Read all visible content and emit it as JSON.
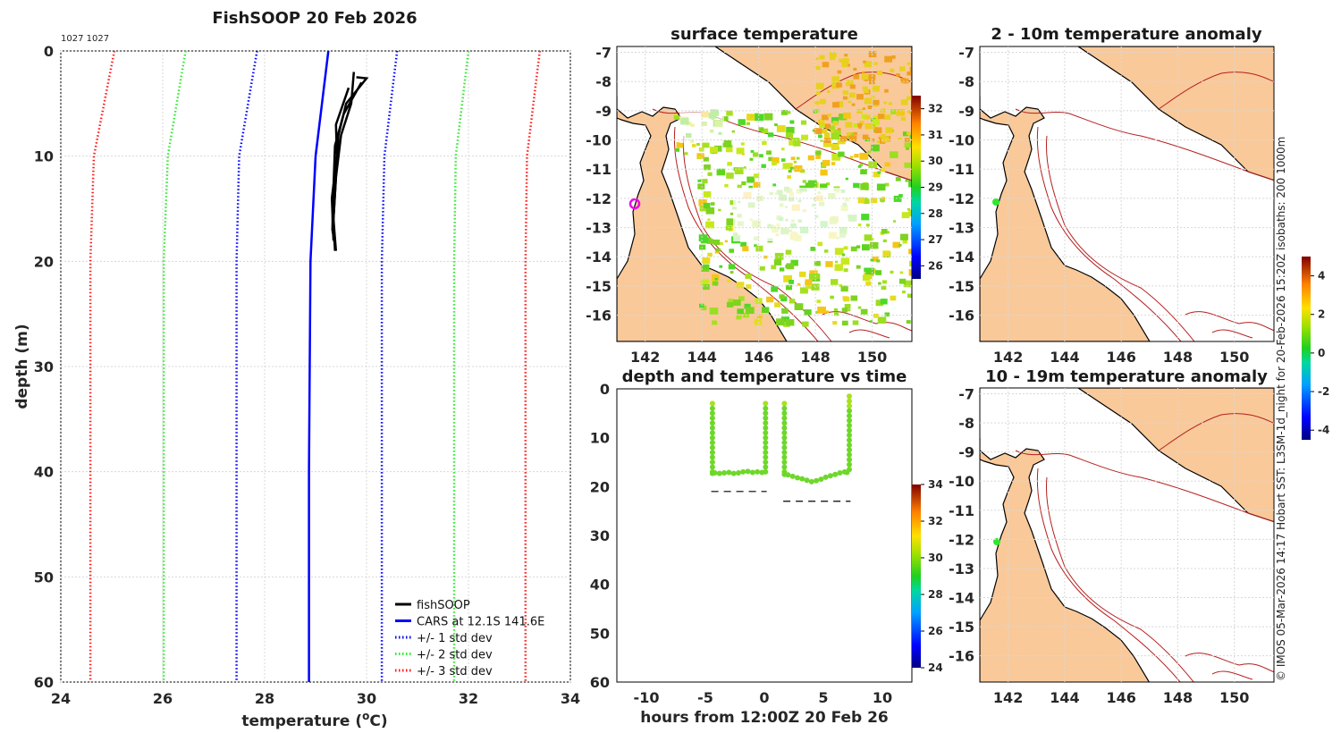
{
  "colors": {
    "land": "#f9c99a",
    "red": "#ff1a1a",
    "green": "#2ee82e",
    "blue": "#0000ff",
    "black": "#000000",
    "isobath": "#b52020",
    "circle": "#ee00ee"
  },
  "profile": {
    "title": "FishSOOP 20 Feb 2026",
    "id_text": "1027 1027",
    "xlabel": "temperature (",
    "xlabel_sup": "o",
    "xlabel_end": "C)",
    "ylabel": "depth (m)",
    "legend": [
      {
        "label": "fishSOOP",
        "color": "#000000",
        "style": "solid"
      },
      {
        "label": "CARS at 12.1S 141.6E",
        "color": "#0000ff",
        "style": "solid"
      },
      {
        "label": "+/- 1 std dev",
        "color": "#0000ff",
        "style": "dotted"
      },
      {
        "label": "+/- 2 std dev",
        "color": "#2ee82e",
        "style": "dotted"
      },
      {
        "label": "+/- 3 std dev",
        "color": "#ff1a1a",
        "style": "dotted"
      }
    ]
  },
  "sst_map": {
    "title": "surface temperature"
  },
  "anom1": {
    "title": "2 - 10m temperature anomaly"
  },
  "anom2": {
    "title": "10 - 19m temperature anomaly"
  },
  "timeplot": {
    "title": "depth and temperature vs time",
    "xlabel": "hours from 12:00Z 20 Feb 26"
  },
  "credit": "© IMOS 05-Mar-2026 14:17 Hobart SST: L3SM-1d_night for 20-Feb-2026 15:20Z isobaths: 200  1000m",
  "chart_data": [
    {
      "type": "line",
      "title": "FishSOOP 20 Feb 2026",
      "xlabel": "temperature (oC)",
      "ylabel": "depth (m)",
      "xlim": [
        24,
        34
      ],
      "ylim": [
        0,
        60
      ],
      "y_reversed": true,
      "xticks": [
        "24",
        "26",
        "28",
        "30",
        "32",
        "34"
      ],
      "yticks": [
        "0",
        "10",
        "20",
        "30",
        "40",
        "50",
        "60"
      ],
      "grid": true,
      "legend_position": "bottom-right",
      "series": [
        {
          "name": "CARS at 12.1S 141.6E",
          "style": "solid",
          "color": "#0000ff",
          "points": [
            [
              29.25,
              0
            ],
            [
              29.0,
              10
            ],
            [
              28.9,
              20
            ],
            [
              28.87,
              40
            ],
            [
              28.87,
              60
            ]
          ]
        },
        {
          "name": "+1 std dev",
          "style": "dotted",
          "color": "#0000ff",
          "points": [
            [
              30.6,
              0
            ],
            [
              30.35,
              10
            ],
            [
              30.3,
              20
            ],
            [
              30.3,
              40
            ],
            [
              30.3,
              60
            ]
          ]
        },
        {
          "name": "-1 std dev",
          "style": "dotted",
          "color": "#0000ff",
          "points": [
            [
              27.85,
              0
            ],
            [
              27.5,
              10
            ],
            [
              27.45,
              20
            ],
            [
              27.45,
              40
            ],
            [
              27.45,
              60
            ]
          ]
        },
        {
          "name": "+2 std dev",
          "style": "dotted",
          "color": "#2ee82e",
          "points": [
            [
              32.0,
              0
            ],
            [
              31.75,
              10
            ],
            [
              31.72,
              20
            ],
            [
              31.72,
              40
            ],
            [
              31.72,
              60
            ]
          ]
        },
        {
          "name": "-2 std dev",
          "style": "dotted",
          "color": "#2ee82e",
          "points": [
            [
              26.45,
              0
            ],
            [
              26.1,
              10
            ],
            [
              26.02,
              20
            ],
            [
              26.02,
              40
            ],
            [
              26.02,
              60
            ]
          ]
        },
        {
          "name": "+3 std dev",
          "style": "dotted",
          "color": "#ff1a1a",
          "points": [
            [
              33.4,
              0
            ],
            [
              33.15,
              10
            ],
            [
              33.12,
              20
            ],
            [
              33.12,
              40
            ],
            [
              33.12,
              60
            ]
          ]
        },
        {
          "name": "-3 std dev",
          "style": "dotted",
          "color": "#ff1a1a",
          "points": [
            [
              25.05,
              0
            ],
            [
              24.65,
              10
            ],
            [
              24.58,
              20
            ],
            [
              24.58,
              40
            ],
            [
              24.58,
              60
            ]
          ]
        },
        {
          "name": "fishSOOP",
          "style": "solid",
          "color": "#000000",
          "points": [
            [
              29.8,
              2.5
            ],
            [
              30.0,
              2.6
            ],
            [
              29.6,
              5
            ],
            [
              29.45,
              8
            ],
            [
              29.4,
              12
            ],
            [
              29.35,
              16
            ],
            [
              29.38,
              19
            ]
          ]
        },
        {
          "name": "fishSOOP",
          "style": "solid",
          "color": "#000000",
          "points": [
            [
              29.75,
              2.0
            ],
            [
              29.7,
              5
            ],
            [
              29.5,
              8
            ],
            [
              29.4,
              12
            ],
            [
              29.35,
              16
            ],
            [
              29.4,
              19
            ]
          ]
        },
        {
          "name": "fishSOOP",
          "style": "solid",
          "color": "#000000",
          "points": [
            [
              29.9,
              3.0
            ],
            [
              29.55,
              6
            ],
            [
              29.38,
              9
            ],
            [
              29.35,
              13
            ],
            [
              29.33,
              17
            ],
            [
              29.38,
              18.5
            ]
          ]
        },
        {
          "name": "fishSOOP",
          "style": "solid",
          "color": "#000000",
          "points": [
            [
              29.65,
              3.5
            ],
            [
              29.4,
              7
            ],
            [
              29.42,
              10
            ],
            [
              29.32,
              14
            ],
            [
              29.35,
              18
            ]
          ]
        }
      ]
    },
    {
      "type": "scatter",
      "title": "depth and temperature vs time",
      "xlabel": "hours from 12:00Z 20 Feb 26",
      "xlim": [
        -12.5,
        12.5
      ],
      "ylim": [
        0,
        60
      ],
      "y_reversed": true,
      "xticks": [
        "-10",
        "-5",
        "0",
        "5",
        "10"
      ],
      "yticks": [
        "0",
        "10",
        "20",
        "30",
        "40",
        "50",
        "60"
      ],
      "colorbar": {
        "ticks": [
          "24",
          "26",
          "28",
          "30",
          "32",
          "34"
        ],
        "range": [
          24,
          34
        ]
      },
      "series": [
        {
          "name": "descent 1",
          "x": [
            -4.4,
            -4.4,
            -4.4,
            -4.4,
            -4.4,
            -4.4,
            -4.4,
            -4.4,
            -4.4,
            -4.4,
            -4.4,
            -4.4,
            -4.4,
            -4.4,
            -4.4,
            -4.4
          ],
          "y": [
            3,
            4,
            5,
            6,
            7,
            8,
            9,
            10,
            11,
            12,
            13,
            14,
            15,
            16,
            17,
            17.3
          ]
        },
        {
          "name": "bottom 1",
          "x": [
            -4.2,
            -3.8,
            -3.4,
            -3.0,
            -2.6,
            -2.2,
            -1.8,
            -1.4,
            -1.0,
            -0.6,
            -0.2
          ],
          "y": [
            17.2,
            17.3,
            17.2,
            17.1,
            17.3,
            17.2,
            17.0,
            16.9,
            17.1,
            17.0,
            17.1
          ]
        },
        {
          "name": "ascent 1",
          "x": [
            0.1,
            0.1,
            0.1,
            0.1,
            0.1,
            0.1,
            0.1,
            0.1,
            0.1,
            0.1,
            0.1,
            0.1,
            0.1,
            0.1,
            0.1
          ],
          "y": [
            3,
            4,
            5,
            6,
            7,
            8,
            9,
            10,
            11,
            12,
            13,
            14,
            15,
            16,
            17
          ]
        },
        {
          "name": "descent 2",
          "x": [
            1.7,
            1.7,
            1.7,
            1.7,
            1.7,
            1.7,
            1.7,
            1.7,
            1.7,
            1.7,
            1.7,
            1.7,
            1.7,
            1.7,
            1.7,
            1.7
          ],
          "y": [
            3,
            4,
            5,
            6,
            7,
            8,
            9,
            10,
            11,
            12,
            13,
            14,
            15,
            16,
            17,
            17.5
          ]
        },
        {
          "name": "bottom 2",
          "x": [
            2.0,
            2.4,
            2.8,
            3.2,
            3.6,
            4.0,
            4.4,
            4.8,
            5.2,
            5.6,
            6.0,
            6.4,
            6.8,
            7.0
          ],
          "y": [
            17.6,
            17.9,
            18.2,
            18.4,
            18.7,
            19.0,
            18.8,
            18.5,
            18.1,
            17.8,
            17.5,
            17.2,
            17.0,
            17.1
          ]
        },
        {
          "name": "ascent 2",
          "x": [
            7.2,
            7.2,
            7.2,
            7.2,
            7.2,
            7.2,
            7.2,
            7.2,
            7.2,
            7.2,
            7.2,
            7.2,
            7.2,
            7.2,
            7.2,
            7.2
          ],
          "y": [
            1.5,
            2.5,
            3.5,
            4.5,
            5.5,
            6.5,
            7.5,
            8.5,
            9.5,
            10.5,
            11.5,
            12.5,
            13.5,
            14.5,
            15.5,
            16.5
          ]
        }
      ],
      "bottom_depth_segments": [
        {
          "x": [
            -4.5,
            0.2
          ],
          "y": 21
        },
        {
          "x": 1.6,
          "x_end": 7.3,
          "y": 23
        }
      ]
    },
    {
      "type": "heatmap",
      "title": "surface temperature",
      "lon_ticks": [
        "142",
        "144",
        "146",
        "148",
        "150"
      ],
      "lat_ticks": [
        "-7",
        "-8",
        "-9",
        "-10",
        "-11",
        "-12",
        "-13",
        "-14",
        "-15",
        "-16"
      ],
      "colorbar": {
        "ticks": [
          "26",
          "27",
          "28",
          "29",
          "30",
          "31",
          "32"
        ],
        "range": [
          25.5,
          32.5
        ]
      }
    },
    {
      "type": "heatmap",
      "title": "2 - 10m temperature anomaly",
      "lon_ticks": [
        "142",
        "144",
        "146",
        "148",
        "150"
      ],
      "lat_ticks": [
        "-7",
        "-8",
        "-9",
        "-10",
        "-11",
        "-12",
        "-13",
        "-14",
        "-15",
        "-16"
      ],
      "colorbar": {
        "ticks": [
          "-4",
          "-2",
          "0",
          "2",
          "4"
        ],
        "range": [
          -4.5,
          5
        ]
      }
    },
    {
      "type": "heatmap",
      "title": "10 - 19m temperature anomaly",
      "lon_ticks": [
        "142",
        "144",
        "146",
        "148",
        "150"
      ],
      "lat_ticks": [
        "-7",
        "-8",
        "-9",
        "-10",
        "-11",
        "-12",
        "-13",
        "-14",
        "-15",
        "-16"
      ]
    }
  ]
}
